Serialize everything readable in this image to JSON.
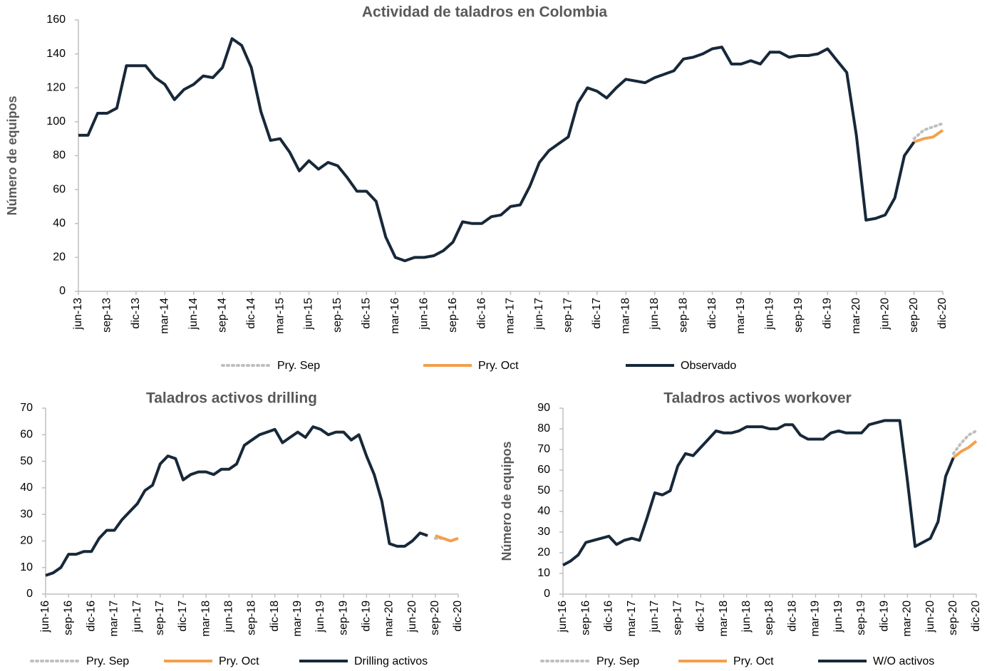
{
  "chart_data": [
    {
      "type": "line",
      "title": "Actividad de taladros en Colombia",
      "y_label": "Número de equipos",
      "categories": [
        "jun-13",
        null,
        null,
        "sep-13",
        null,
        null,
        "dic-13",
        null,
        null,
        "mar-14",
        null,
        null,
        "jun-14",
        null,
        null,
        "sep-14",
        null,
        null,
        "dic-14",
        null,
        null,
        "mar-15",
        null,
        null,
        "jun-15",
        null,
        null,
        "sep-15",
        null,
        null,
        "dic-15",
        null,
        null,
        "mar-16",
        null,
        null,
        "jun-16",
        null,
        null,
        "sep-16",
        null,
        null,
        "dic-16",
        null,
        null,
        "mar-17",
        null,
        null,
        "jun-17",
        null,
        null,
        "sep-17",
        null,
        null,
        "dic-17",
        null,
        null,
        "mar-18",
        null,
        null,
        "jun-18",
        null,
        null,
        "sep-18",
        null,
        null,
        "dic-18",
        null,
        null,
        "mar-19",
        null,
        null,
        "jun-19",
        null,
        null,
        "sep-19",
        null,
        null,
        "dic-19",
        null,
        null,
        "mar-20",
        null,
        null,
        "jun-20",
        null,
        null,
        "sep-20",
        null,
        null,
        "dic-20"
      ],
      "ylim": [
        0,
        160
      ],
      "yticks": [
        0,
        20,
        40,
        60,
        80,
        100,
        120,
        140,
        160
      ],
      "series": [
        {
          "name": "Pry. Sep",
          "color": "#bfbfbf",
          "style": "dotted",
          "values": [
            null,
            null,
            null,
            null,
            null,
            null,
            null,
            null,
            null,
            null,
            null,
            null,
            null,
            null,
            null,
            null,
            null,
            null,
            null,
            null,
            null,
            null,
            null,
            null,
            null,
            null,
            null,
            null,
            null,
            null,
            null,
            null,
            null,
            null,
            null,
            null,
            null,
            null,
            null,
            null,
            null,
            null,
            null,
            null,
            null,
            null,
            null,
            null,
            null,
            null,
            null,
            null,
            null,
            null,
            null,
            null,
            null,
            null,
            null,
            null,
            null,
            null,
            null,
            null,
            null,
            null,
            null,
            null,
            null,
            null,
            null,
            null,
            null,
            null,
            null,
            null,
            null,
            null,
            null,
            null,
            null,
            null,
            null,
            null,
            null,
            null,
            null,
            90,
            95,
            97,
            99
          ]
        },
        {
          "name": "Pry. Oct",
          "color": "#f4a04d",
          "style": "solid",
          "values": [
            null,
            null,
            null,
            null,
            null,
            null,
            null,
            null,
            null,
            null,
            null,
            null,
            null,
            null,
            null,
            null,
            null,
            null,
            null,
            null,
            null,
            null,
            null,
            null,
            null,
            null,
            null,
            null,
            null,
            null,
            null,
            null,
            null,
            null,
            null,
            null,
            null,
            null,
            null,
            null,
            null,
            null,
            null,
            null,
            null,
            null,
            null,
            null,
            null,
            null,
            null,
            null,
            null,
            null,
            null,
            null,
            null,
            null,
            null,
            null,
            null,
            null,
            null,
            null,
            null,
            null,
            null,
            null,
            null,
            null,
            null,
            null,
            null,
            null,
            null,
            null,
            null,
            null,
            null,
            null,
            null,
            null,
            null,
            null,
            null,
            null,
            null,
            88,
            90,
            91,
            95
          ]
        },
        {
          "name": "Observado",
          "color": "#172839",
          "style": "solid",
          "values": [
            92,
            92,
            105,
            105,
            108,
            133,
            133,
            133,
            126,
            122,
            113,
            119,
            122,
            127,
            126,
            132,
            149,
            145,
            132,
            106,
            89,
            90,
            82,
            71,
            77,
            72,
            76,
            74,
            67,
            59,
            59,
            53,
            32,
            20,
            18,
            20,
            20,
            21,
            24,
            29,
            41,
            40,
            40,
            44,
            45,
            50,
            51,
            62,
            76,
            83,
            87,
            91,
            111,
            120,
            118,
            114,
            120,
            125,
            124,
            123,
            126,
            128,
            130,
            137,
            138,
            140,
            143,
            144,
            134,
            134,
            136,
            134,
            141,
            141,
            138,
            139,
            139,
            140,
            143,
            136,
            129,
            92,
            42,
            43,
            45,
            55,
            80,
            88,
            null,
            null,
            null
          ]
        }
      ]
    },
    {
      "type": "line",
      "title": "Taladros activos drilling",
      "categories": [
        "jun-16",
        null,
        null,
        "sep-16",
        null,
        null,
        "dic-16",
        null,
        null,
        "mar-17",
        null,
        null,
        "jun-17",
        null,
        null,
        "sep-17",
        null,
        null,
        "dic-17",
        null,
        null,
        "mar-18",
        null,
        null,
        "jun-18",
        null,
        null,
        "sep-18",
        null,
        null,
        "dic-18",
        null,
        null,
        "mar-19",
        null,
        null,
        "jun-19",
        null,
        null,
        "sep-19",
        null,
        null,
        "dic-19",
        null,
        null,
        "mar-20",
        null,
        null,
        "jun-20",
        null,
        null,
        "sep-20",
        null,
        null,
        "dic-20"
      ],
      "ylim": [
        0,
        70
      ],
      "yticks": [
        0,
        10,
        20,
        30,
        40,
        50,
        60,
        70
      ],
      "series": [
        {
          "name": "Pry. Sep",
          "color": "#bfbfbf",
          "style": "dotted",
          "values": [
            null,
            null,
            null,
            null,
            null,
            null,
            null,
            null,
            null,
            null,
            null,
            null,
            null,
            null,
            null,
            null,
            null,
            null,
            null,
            null,
            null,
            null,
            null,
            null,
            null,
            null,
            null,
            null,
            null,
            null,
            null,
            null,
            null,
            null,
            null,
            null,
            null,
            null,
            null,
            null,
            null,
            null,
            null,
            null,
            null,
            null,
            null,
            null,
            null,
            null,
            null,
            21,
            21,
            20,
            21
          ]
        },
        {
          "name": "Pry. Oct",
          "color": "#f4a04d",
          "style": "solid",
          "values": [
            null,
            null,
            null,
            null,
            null,
            null,
            null,
            null,
            null,
            null,
            null,
            null,
            null,
            null,
            null,
            null,
            null,
            null,
            null,
            null,
            null,
            null,
            null,
            null,
            null,
            null,
            null,
            null,
            null,
            null,
            null,
            null,
            null,
            null,
            null,
            null,
            null,
            null,
            null,
            null,
            null,
            null,
            null,
            null,
            null,
            null,
            null,
            null,
            null,
            null,
            null,
            22,
            21,
            20,
            21
          ]
        },
        {
          "name": "Drilling activos",
          "color": "#172839",
          "style": "solid",
          "values": [
            7,
            8,
            10,
            15,
            15,
            16,
            16,
            21,
            24,
            24,
            28,
            31,
            34,
            39,
            41,
            49,
            52,
            51,
            43,
            45,
            46,
            46,
            45,
            47,
            47,
            49,
            56,
            58,
            60,
            61,
            62,
            57,
            59,
            61,
            59,
            63,
            62,
            60,
            61,
            61,
            58,
            60,
            52,
            45,
            35,
            19,
            18,
            18,
            20,
            23,
            22,
            null,
            null,
            null,
            null
          ]
        }
      ]
    },
    {
      "type": "line",
      "title": "Taladros activos workover",
      "y_label": "Número de equipos",
      "categories": [
        "jun-16",
        null,
        null,
        "sep-16",
        null,
        null,
        "dic-16",
        null,
        null,
        "mar-17",
        null,
        null,
        "jun-17",
        null,
        null,
        "sep-17",
        null,
        null,
        "dic-17",
        null,
        null,
        "mar-18",
        null,
        null,
        "jun-18",
        null,
        null,
        "sep-18",
        null,
        null,
        "dic-18",
        null,
        null,
        "mar-19",
        null,
        null,
        "jun-19",
        null,
        null,
        "sep-19",
        null,
        null,
        "dic-19",
        null,
        null,
        "mar-20",
        null,
        null,
        "jun-20",
        null,
        null,
        "sep-20",
        null,
        null,
        "dic-20"
      ],
      "ylim": [
        0,
        90
      ],
      "yticks": [
        0,
        10,
        20,
        30,
        40,
        50,
        60,
        70,
        80,
        90
      ],
      "series": [
        {
          "name": "Pry. Sep",
          "color": "#bfbfbf",
          "style": "dotted",
          "values": [
            null,
            null,
            null,
            null,
            null,
            null,
            null,
            null,
            null,
            null,
            null,
            null,
            null,
            null,
            null,
            null,
            null,
            null,
            null,
            null,
            null,
            null,
            null,
            null,
            null,
            null,
            null,
            null,
            null,
            null,
            null,
            null,
            null,
            null,
            null,
            null,
            null,
            null,
            null,
            null,
            null,
            null,
            null,
            null,
            null,
            null,
            null,
            null,
            null,
            null,
            null,
            68,
            73,
            77,
            79
          ]
        },
        {
          "name": "Pry. Oct",
          "color": "#f4a04d",
          "style": "solid",
          "values": [
            null,
            null,
            null,
            null,
            null,
            null,
            null,
            null,
            null,
            null,
            null,
            null,
            null,
            null,
            null,
            null,
            null,
            null,
            null,
            null,
            null,
            null,
            null,
            null,
            null,
            null,
            null,
            null,
            null,
            null,
            null,
            null,
            null,
            null,
            null,
            null,
            null,
            null,
            null,
            null,
            null,
            null,
            null,
            null,
            null,
            null,
            null,
            null,
            null,
            null,
            null,
            66,
            69,
            71,
            74
          ]
        },
        {
          "name": "W/O activos",
          "color": "#172839",
          "style": "solid",
          "values": [
            14,
            16,
            19,
            25,
            26,
            27,
            28,
            24,
            26,
            27,
            26,
            37,
            49,
            48,
            50,
            62,
            68,
            67,
            71,
            75,
            79,
            78,
            78,
            79,
            81,
            81,
            81,
            80,
            80,
            82,
            82,
            77,
            75,
            75,
            75,
            78,
            79,
            78,
            78,
            78,
            82,
            83,
            84,
            84,
            84,
            55,
            23,
            25,
            27,
            35,
            57,
            66,
            null,
            null,
            null
          ]
        }
      ]
    }
  ]
}
